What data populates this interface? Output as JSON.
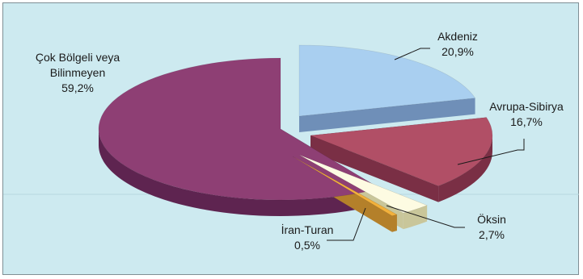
{
  "chart_data": {
    "type": "pie",
    "title": "",
    "slices": [
      {
        "label_lines": [
          "Çok Bölgeli veya",
          "Bilinmeyen"
        ],
        "value_text": "59,2%",
        "value": 59.2,
        "top_color": "#8e3f74",
        "side_color": "#5e2450"
      },
      {
        "label_lines": [
          "Akdeniz"
        ],
        "value_text": "20,9%",
        "value": 20.9,
        "top_color": "#a9cff0",
        "side_color": "#6f8fb8"
      },
      {
        "label_lines": [
          "Avrupa-Sibirya"
        ],
        "value_text": "16,7%",
        "value": 16.7,
        "top_color": "#b14f66",
        "side_color": "#7a2f45"
      },
      {
        "label_lines": [
          "Öksin"
        ],
        "value_text": "2,7%",
        "value": 2.7,
        "top_color": "#fdfbe2",
        "side_color": "#c9c69a"
      },
      {
        "label_lines": [
          "İran-Turan"
        ],
        "value_text": "0,5%",
        "value": 0.5,
        "top_color": "#f2b13c",
        "side_color": "#b4802a"
      }
    ]
  }
}
